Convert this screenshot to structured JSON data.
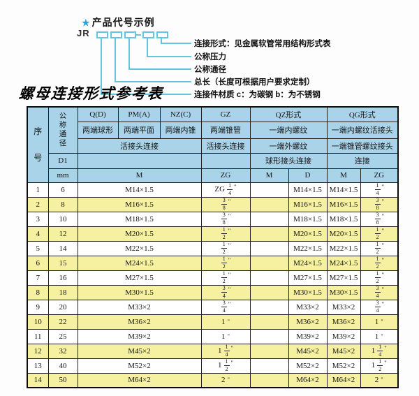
{
  "diagram": {
    "star": "★",
    "heading": "产品代号示例",
    "code_prefix": "JR",
    "labels": [
      "连接件材质  c：为碳钢  b：为不锈钢",
      "总长（长度可根据用户要求定制）",
      "公称通径",
      "公称压力",
      "连接形式：见金属软管常用结构形式表"
    ]
  },
  "table": {
    "title": "螺母连接形式参考表",
    "header": {
      "col_no": "序号",
      "col_dn": "公称通径",
      "d1": "D1",
      "mm": "mm",
      "q": "Q(D)",
      "pm": "PM(A)",
      "nz": "NZ(C)",
      "gz": "GZ",
      "qz": "QZ形式",
      "qg": "QG形式",
      "q_desc": "两端球形",
      "pm_desc": "两端平面",
      "nz_desc": "两端内锥",
      "gz_desc": "两端锥管",
      "qz_desc1": "一端内螺纹",
      "qg_desc1": "一端内螺纹活接头",
      "union_conn": "活接头连接",
      "gz_conn": "活接头连接",
      "qz_desc2": "一端外螺纹",
      "qg_desc2": "一端锥管螺纹接头",
      "qz_conn": "球形接头连接",
      "qg_conn": "连接",
      "m_span": "M",
      "zg": "ZG",
      "qz_m_h": "M",
      "qz_d_h": "D",
      "qg_m_h": "M",
      "qg_zg_h": "ZG"
    },
    "rows": [
      {
        "no": "1",
        "dn": "6",
        "m": "M14×1.5",
        "gz": "ZG 1/4\"",
        "qz_m": "",
        "qz_d": "M14×1.5",
        "qg_m": "M14×1.5",
        "qg_zg": "1/4\""
      },
      {
        "no": "2",
        "dn": "8",
        "m": "M16×1.5",
        "gz": "3/8\"",
        "qz_m": "",
        "qz_d": "M16×1.5",
        "qg_m": "M16×1.5",
        "qg_zg": "3/8\""
      },
      {
        "no": "3",
        "dn": "10",
        "m": "M18×1.5",
        "gz": "3/8\"",
        "qz_m": "",
        "qz_d": "M18×1.5",
        "qg_m": "M18×1.5",
        "qg_zg": "3/8\""
      },
      {
        "no": "4",
        "dn": "12",
        "m": "M20×1.5",
        "gz": "1/2\"",
        "qz_m": "",
        "qz_d": "M20×1.5",
        "qg_m": "M20×1.5",
        "qg_zg": "1/2\""
      },
      {
        "no": "5",
        "dn": "14",
        "m": "M22×1.5",
        "gz": "1/2\"",
        "qz_m": "",
        "qz_d": "M22×1.5",
        "qg_m": "M22×1.5",
        "qg_zg": "1/2\""
      },
      {
        "no": "6",
        "dn": "15",
        "m": "M24×1.5",
        "gz": "1/2\"",
        "qz_m": "",
        "qz_d": "M24×1.5",
        "qg_m": "M24×1.5",
        "qg_zg": "1/2\""
      },
      {
        "no": "7",
        "dn": "16",
        "m": "M27×1.5",
        "gz": "1/2\"",
        "qz_m": "",
        "qz_d": "M27×1.5",
        "qg_m": "M27×1.5",
        "qg_zg": "1/2\""
      },
      {
        "no": "8",
        "dn": "18",
        "m": "M30×1.5",
        "gz": "3/4\"",
        "qz_m": "",
        "qz_d": "M30×1.5",
        "qg_m": "M30×1.5",
        "qg_zg": "3/4\""
      },
      {
        "no": "9",
        "dn": "20",
        "m": "M33×2",
        "gz": "3/4\"",
        "qz_m": "",
        "qz_d": "M33×2",
        "qg_m": "M33×2",
        "qg_zg": "3/4\""
      },
      {
        "no": "10",
        "dn": "22",
        "m": "M36×2",
        "gz": "1\"",
        "qz_m": "",
        "qz_d": "M36×2",
        "qg_m": "M36×2",
        "qg_zg": "1\""
      },
      {
        "no": "11",
        "dn": "25",
        "m": "M39×2",
        "gz": "1\"",
        "qz_m": "",
        "qz_d": "M39×2",
        "qg_m": "M39×2",
        "qg_zg": "1\""
      },
      {
        "no": "12",
        "dn": "32",
        "m": "M45×2",
        "gz": "1 1/4\"",
        "qz_m": "",
        "qz_d": "M45×2",
        "qg_m": "M45×2",
        "qg_zg": "1 1/4\""
      },
      {
        "no": "13",
        "dn": "40",
        "m": "M52×2",
        "gz": "1 1/2\"",
        "qz_m": "",
        "qz_d": "M52×2",
        "qg_m": "M52×2",
        "qg_zg": "1 1/2\""
      },
      {
        "no": "14",
        "dn": "50",
        "m": "M64×2",
        "gz": "2\"",
        "qz_m": "",
        "qz_d": "M64×2",
        "qg_m": "M64×2",
        "qg_zg": "2\""
      }
    ]
  },
  "colors": {
    "header_bg": "#a9d3e9",
    "row_alt_bg": "#f6f1a1",
    "line_cyan": "#63c6dc",
    "star_blue": "#2aa3dc",
    "border": "#1e1e1e"
  }
}
